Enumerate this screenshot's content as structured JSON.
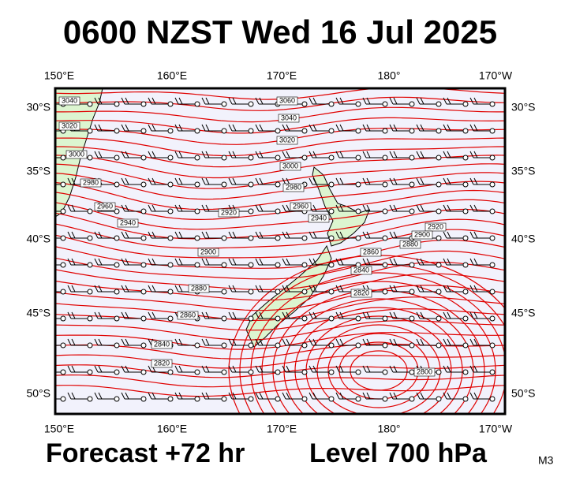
{
  "header": {
    "title": "0600 NZST Wed 16 Jul 2025"
  },
  "longitude_labels": [
    "150°E",
    "160°E",
    "170°E",
    "180°",
    "170°W"
  ],
  "latitude_labels": [
    "30°S",
    "35°S",
    "40°S",
    "45°S",
    "50°S"
  ],
  "contour_labels": [
    "3040",
    "3020",
    "3000",
    "2980",
    "2960",
    "2940",
    "2920",
    "2900",
    "2880",
    "2860",
    "2840",
    "2820",
    "3060",
    "3040",
    "3020",
    "3000",
    "2980",
    "2960",
    "2940",
    "2920",
    "2900",
    "2880",
    "2860",
    "2840",
    "2820",
    "2800"
  ],
  "footer": {
    "forecast": "Forecast +72 hr",
    "level": "Level 700 hPa",
    "model": "M3"
  }
}
